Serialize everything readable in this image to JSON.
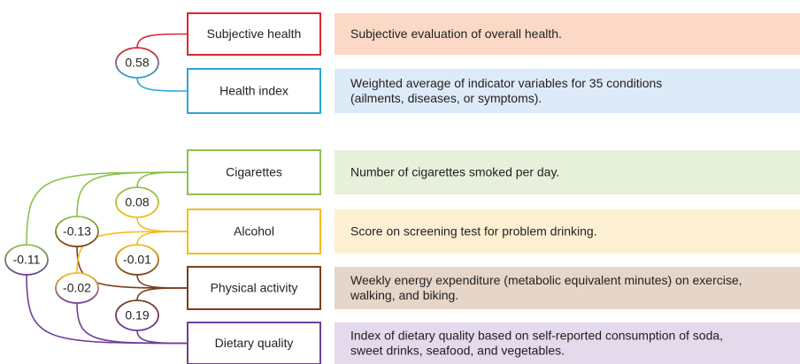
{
  "nodes": [
    {
      "label": "Subjective health",
      "color": "#d7282f",
      "fill": "#fbd9c6",
      "description": [
        "Subjective evaluation of overall health."
      ]
    },
    {
      "label": "Health index",
      "color": "#2aa6d9",
      "fill": "#ddeaf7",
      "description": [
        "Weighted average of indicator variables for 35 conditions",
        "(ailments, diseases, or symptoms)."
      ]
    },
    {
      "label": "Cigarettes",
      "color": "#8dc04f",
      "fill": "#e7f0da",
      "description": [
        "Number of cigarettes smoked per day."
      ]
    },
    {
      "label": "Alcohol",
      "color": "#f2bd1f",
      "fill": "#fdf0d2",
      "description": [
        "Score on screening test for problem drinking."
      ]
    },
    {
      "label": "Physical activity",
      "color": "#7b3f1e",
      "fill": "#e6d5c9",
      "description": [
        "Weekly energy expenditure (metabolic equivalent minutes) on exercise,",
        "walking, and biking."
      ]
    },
    {
      "label": "Dietary quality",
      "color": "#6f3f96",
      "fill": "#e5d9ec",
      "description": [
        "Index of dietary quality based on self-reported consumption of soda,",
        "sweet drinks, seafood, and vegetables."
      ]
    }
  ],
  "correlations": [
    {
      "value": 0.58,
      "from": 0,
      "to": 1
    },
    {
      "value": 0.08,
      "from": 2,
      "to": 3
    },
    {
      "value": -0.13,
      "from": 2,
      "to": 4
    },
    {
      "value": -0.01,
      "from": 3,
      "to": 4
    },
    {
      "value": -0.11,
      "from": 2,
      "to": 5
    },
    {
      "value": -0.02,
      "from": 3,
      "to": 5
    },
    {
      "value": 0.19,
      "from": 4,
      "to": 5
    }
  ]
}
